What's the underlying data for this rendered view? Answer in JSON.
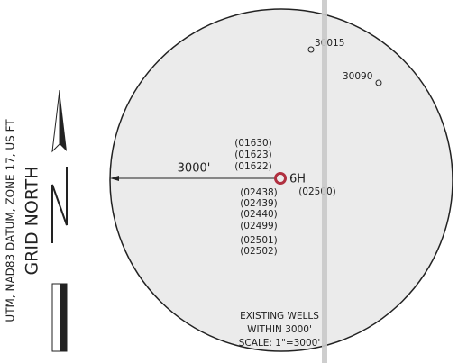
{
  "map": {
    "radius_label": "3000'",
    "subject_well": "6H",
    "wells": [
      "30015",
      "30090",
      "(01630)",
      "(01623)",
      "(01622)",
      "(02500)",
      "(02438)",
      "(02439)",
      "(02440)",
      "(02499)",
      "(02501)",
      "(02502)"
    ],
    "notes": [
      "EXISTING WELLS",
      "WITHIN 3000'",
      "SCALE: 1\"=3000'"
    ]
  },
  "north_arrow": {
    "title": "GRID NORTH",
    "datum": "UTM, NAD83 DATUM, ZONE 17, US FT"
  }
}
